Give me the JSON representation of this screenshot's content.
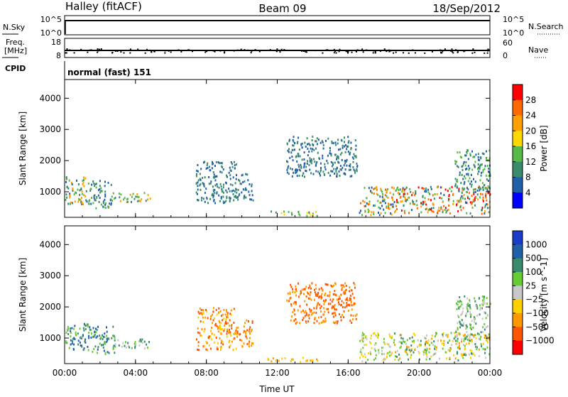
{
  "header": {
    "site": "Halley (fitACF)",
    "beam": "Beam 09",
    "date": "18/Sep/2012"
  },
  "strips": {
    "nsky_label": "N.Sky",
    "nsky_ticks": [
      "10^5",
      "10^0"
    ],
    "nsearch_label": "N.Search",
    "freq_label_1": "Freq.",
    "freq_label_2": "[MHz]",
    "freq_ticks": [
      "18",
      "8"
    ],
    "nave_label": "Nave",
    "nave_ticks": [
      "60",
      "0"
    ],
    "cpid_label": "CPID",
    "cpid_value": "normal (fast) 151"
  },
  "chart_data": [
    {
      "type": "heatmap",
      "name": "power",
      "ylabel": "Slant Range [km]",
      "xlabel": "Time UT",
      "x_tick_labels": [
        "00:00",
        "04:00",
        "08:00",
        "12:00",
        "16:00",
        "20:00",
        "00:00"
      ],
      "x_ticks_hours": [
        0,
        4,
        8,
        12,
        16,
        20,
        24
      ],
      "xlim_hours": [
        0,
        24
      ],
      "y_ticks": [
        1000,
        2000,
        3000,
        4000
      ],
      "ylim": [
        180,
        4600
      ],
      "colorbar": {
        "label": "Power [dB]",
        "tick_labels": [
          "28",
          "24",
          "20",
          "16",
          "12",
          "8",
          "4"
        ],
        "colors": [
          "#ff0000",
          "#ff6a00",
          "#ffa000",
          "#ffd800",
          "#56b948",
          "#3a8a6b",
          "#2060a8",
          "#0000ff"
        ]
      },
      "regions": [
        {
          "t": [
            0.0,
            1.3
          ],
          "r": [
            600,
            1500
          ],
          "colors": [
            "#3a8a6b",
            "#2060a8",
            "#56b948",
            "#ffa000"
          ]
        },
        {
          "t": [
            1.3,
            2.8
          ],
          "r": [
            500,
            1400
          ],
          "colors": [
            "#3a8a6b",
            "#2060a8",
            "#56b948"
          ]
        },
        {
          "t": [
            2.8,
            4.8
          ],
          "r": [
            700,
            1000
          ],
          "colors": [
            "#56b948",
            "#3a8a6b",
            "#ffa000"
          ]
        },
        {
          "t": [
            7.4,
            9.7
          ],
          "r": [
            650,
            2000
          ],
          "colors": [
            "#2060a8",
            "#3a8a6b"
          ]
        },
        {
          "t": [
            9.6,
            10.6
          ],
          "r": [
            750,
            1600
          ],
          "colors": [
            "#2060a8",
            "#3a8a6b"
          ]
        },
        {
          "t": [
            11.4,
            14.3
          ],
          "r": [
            250,
            400
          ],
          "colors": [
            "#56b948",
            "#3a8a6b",
            "#ffd800"
          ]
        },
        {
          "t": [
            12.5,
            16.5
          ],
          "r": [
            1500,
            2800
          ],
          "colors": [
            "#2060a8",
            "#3a8a6b"
          ]
        },
        {
          "t": [
            16.6,
            18.5
          ],
          "r": [
            280,
            1200
          ],
          "colors": [
            "#ff6a00",
            "#ffa000",
            "#56b948",
            "#2060a8"
          ]
        },
        {
          "t": [
            18.5,
            24.0
          ],
          "r": [
            320,
            1200
          ],
          "colors": [
            "#ff0000",
            "#ff6a00",
            "#ffa000",
            "#56b948",
            "#3a8a6b",
            "#2060a8"
          ]
        },
        {
          "t": [
            22.0,
            24.0
          ],
          "r": [
            1000,
            2400
          ],
          "colors": [
            "#56b948",
            "#3a8a6b",
            "#2060a8"
          ]
        }
      ]
    },
    {
      "type": "heatmap",
      "name": "velocity",
      "ylabel": "Slant Range [km]",
      "xlabel": "Time UT",
      "x_tick_labels": [
        "00:00",
        "04:00",
        "08:00",
        "12:00",
        "16:00",
        "20:00",
        "00:00"
      ],
      "x_ticks_hours": [
        0,
        4,
        8,
        12,
        16,
        20,
        24
      ],
      "xlim_hours": [
        0,
        24
      ],
      "y_ticks": [
        1000,
        2000,
        3000,
        4000
      ],
      "ylim": [
        180,
        4600
      ],
      "colorbar": {
        "label": "Velocity [m s^-1]",
        "tick_labels": [
          "1000",
          "500",
          "100",
          "25",
          "−25",
          "−100",
          "−500",
          "−1000"
        ],
        "colors": [
          "#1a3cc8",
          "#2060a8",
          "#3a8a6b",
          "#66cc33",
          "#c8c8c8",
          "#ffd000",
          "#ff9900",
          "#ff5500",
          "#ff0000"
        ]
      },
      "regions": [
        {
          "t": [
            0.0,
            1.3
          ],
          "r": [
            600,
            1500
          ],
          "colors": [
            "#3a8a6b",
            "#2060a8",
            "#66cc33"
          ]
        },
        {
          "t": [
            1.3,
            2.8
          ],
          "r": [
            500,
            1400
          ],
          "colors": [
            "#3a8a6b",
            "#2060a8",
            "#66cc33"
          ]
        },
        {
          "t": [
            2.8,
            4.8
          ],
          "r": [
            700,
            1000
          ],
          "colors": [
            "#3a8a6b",
            "#66cc33",
            "#c8c8c8"
          ]
        },
        {
          "t": [
            7.4,
            9.7
          ],
          "r": [
            650,
            2000
          ],
          "colors": [
            "#ff9900",
            "#ff5500",
            "#ffd000"
          ]
        },
        {
          "t": [
            9.6,
            10.6
          ],
          "r": [
            750,
            1600
          ],
          "colors": [
            "#ff9900",
            "#ff5500"
          ]
        },
        {
          "t": [
            11.4,
            14.3
          ],
          "r": [
            250,
            400
          ],
          "colors": [
            "#ffd000",
            "#ff9900"
          ]
        },
        {
          "t": [
            12.5,
            16.5
          ],
          "r": [
            1500,
            2800
          ],
          "colors": [
            "#ff9900",
            "#ff5500"
          ]
        },
        {
          "t": [
            16.6,
            18.5
          ],
          "r": [
            280,
            1200
          ],
          "colors": [
            "#c8c8c8",
            "#66cc33",
            "#ffd000"
          ]
        },
        {
          "t": [
            18.5,
            24.0
          ],
          "r": [
            320,
            1200
          ],
          "colors": [
            "#c8c8c8",
            "#66cc33",
            "#ffd000",
            "#ff9900",
            "#3a8a6b"
          ]
        },
        {
          "t": [
            22.0,
            24.0
          ],
          "r": [
            1000,
            2400
          ],
          "colors": [
            "#3a8a6b",
            "#66cc33",
            "#c8c8c8"
          ]
        }
      ]
    }
  ]
}
